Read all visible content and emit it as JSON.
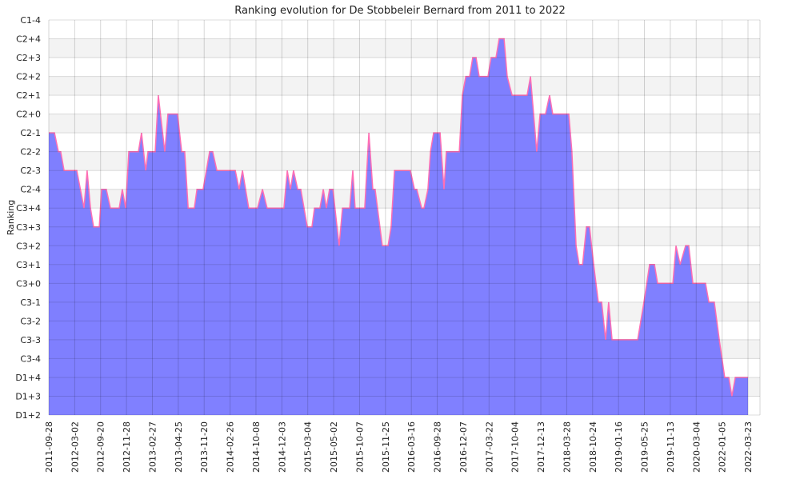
{
  "chart_data": {
    "type": "area",
    "title": "Ranking evolution for De Stobbeleir Bernard from 2011 to 2022",
    "xlabel": "",
    "ylabel": "Ranking",
    "x_unit": "date tick index (0 = first tick label, 27 = last)",
    "categories": [
      "2011-09-28",
      "2012-03-02",
      "2012-09-20",
      "2012-11-28",
      "2013-02-27",
      "2013-04-25",
      "2013-11-20",
      "2014-02-26",
      "2014-10-08",
      "2014-12-03",
      "2015-03-04",
      "2015-05-02",
      "2015-10-07",
      "2015-11-25",
      "2016-03-16",
      "2016-09-28",
      "2016-12-07",
      "2017-03-22",
      "2017-10-04",
      "2017-12-13",
      "2018-03-28",
      "2018-10-24",
      "2019-01-16",
      "2019-05-25",
      "2019-11-13",
      "2020-03-04",
      "2022-01-05",
      "2022-03-23"
    ],
    "y_levels": [
      "D1+2",
      "D1+3",
      "D1+4",
      "C3-4",
      "C3-3",
      "C3-2",
      "C3-1",
      "C3+0",
      "C3+1",
      "C3+2",
      "C3+3",
      "C3+4",
      "C2-4",
      "C2-3",
      "C2-2",
      "C2-1",
      "C2+0",
      "C2+1",
      "C2+2",
      "C2+3",
      "C2+4",
      "C1-4"
    ],
    "grid": true,
    "colors": {
      "fill": "#6a6aff",
      "line": "#ff6fb4",
      "band": "#f3f3f3",
      "grid": "#cccccc"
    },
    "points": [
      [
        0,
        15
      ],
      [
        0.22,
        15
      ],
      [
        0.37,
        14
      ],
      [
        0.46,
        14
      ],
      [
        0.59,
        13
      ],
      [
        1.08,
        13
      ],
      [
        1.36,
        11
      ],
      [
        1.48,
        13
      ],
      [
        1.61,
        11
      ],
      [
        1.73,
        10
      ],
      [
        1.95,
        10
      ],
      [
        2.04,
        12
      ],
      [
        2.22,
        12
      ],
      [
        2.38,
        11
      ],
      [
        2.72,
        11
      ],
      [
        2.84,
        12
      ],
      [
        2.97,
        11
      ],
      [
        3.09,
        14
      ],
      [
        3.46,
        14
      ],
      [
        3.58,
        15
      ],
      [
        3.74,
        13
      ],
      [
        3.83,
        14
      ],
      [
        4.11,
        14
      ],
      [
        4.23,
        17
      ],
      [
        4.48,
        14
      ],
      [
        4.6,
        16
      ],
      [
        4.97,
        16
      ],
      [
        5.13,
        14
      ],
      [
        5.25,
        14
      ],
      [
        5.38,
        11
      ],
      [
        5.62,
        11
      ],
      [
        5.72,
        12
      ],
      [
        5.96,
        12
      ],
      [
        6.21,
        14
      ],
      [
        6.33,
        14
      ],
      [
        6.49,
        13
      ],
      [
        7.2,
        13
      ],
      [
        7.35,
        12
      ],
      [
        7.48,
        13
      ],
      [
        7.72,
        11
      ],
      [
        8.06,
        11
      ],
      [
        8.25,
        12
      ],
      [
        8.43,
        11
      ],
      [
        9.08,
        11
      ],
      [
        9.21,
        13
      ],
      [
        9.33,
        12
      ],
      [
        9.45,
        13
      ],
      [
        9.61,
        12
      ],
      [
        9.73,
        12
      ],
      [
        9.98,
        10
      ],
      [
        10.16,
        10
      ],
      [
        10.26,
        11
      ],
      [
        10.47,
        11
      ],
      [
        10.6,
        12
      ],
      [
        10.72,
        11
      ],
      [
        10.84,
        12
      ],
      [
        10.97,
        12
      ],
      [
        11.21,
        9
      ],
      [
        11.34,
        11
      ],
      [
        11.62,
        11
      ],
      [
        11.74,
        13
      ],
      [
        11.83,
        11
      ],
      [
        12.2,
        11
      ],
      [
        12.36,
        15
      ],
      [
        12.51,
        12
      ],
      [
        12.6,
        12
      ],
      [
        12.88,
        9
      ],
      [
        13.1,
        9
      ],
      [
        13.22,
        10
      ],
      [
        13.35,
        13
      ],
      [
        13.96,
        13
      ],
      [
        14.12,
        12
      ],
      [
        14.21,
        12
      ],
      [
        14.4,
        11
      ],
      [
        14.49,
        11
      ],
      [
        14.64,
        12
      ],
      [
        14.74,
        14
      ],
      [
        14.86,
        15
      ],
      [
        15.11,
        15
      ],
      [
        15.26,
        12
      ],
      [
        15.35,
        14
      ],
      [
        15.85,
        14
      ],
      [
        15.97,
        17
      ],
      [
        16.1,
        18
      ],
      [
        16.25,
        18
      ],
      [
        16.37,
        19
      ],
      [
        16.5,
        19
      ],
      [
        16.62,
        18
      ],
      [
        16.96,
        18
      ],
      [
        17.08,
        19
      ],
      [
        17.27,
        19
      ],
      [
        17.39,
        20
      ],
      [
        17.58,
        20
      ],
      [
        17.7,
        18
      ],
      [
        17.89,
        17
      ],
      [
        18.47,
        17
      ],
      [
        18.6,
        18
      ],
      [
        18.72,
        16
      ],
      [
        18.84,
        14
      ],
      [
        18.97,
        16
      ],
      [
        19.18,
        16
      ],
      [
        19.34,
        17
      ],
      [
        19.46,
        16
      ],
      [
        20.08,
        16
      ],
      [
        20.2,
        14
      ],
      [
        20.36,
        9
      ],
      [
        20.48,
        8
      ],
      [
        20.61,
        8
      ],
      [
        20.76,
        10
      ],
      [
        20.88,
        10
      ],
      [
        21.04,
        8
      ],
      [
        21.22,
        6
      ],
      [
        21.35,
        6
      ],
      [
        21.5,
        4
      ],
      [
        21.62,
        6
      ],
      [
        21.75,
        4
      ],
      [
        22.74,
        4
      ],
      [
        22.98,
        6
      ],
      [
        23.2,
        8
      ],
      [
        23.39,
        8
      ],
      [
        23.51,
        7
      ],
      [
        24.1,
        7
      ],
      [
        24.22,
        9
      ],
      [
        24.38,
        8
      ],
      [
        24.59,
        9
      ],
      [
        24.71,
        9
      ],
      [
        24.87,
        7
      ],
      [
        25.36,
        7
      ],
      [
        25.49,
        6
      ],
      [
        25.7,
        6
      ],
      [
        25.89,
        4
      ],
      [
        26.1,
        2
      ],
      [
        26.26,
        2
      ],
      [
        26.38,
        1
      ],
      [
        26.51,
        2
      ],
      [
        27.0,
        2
      ]
    ]
  }
}
